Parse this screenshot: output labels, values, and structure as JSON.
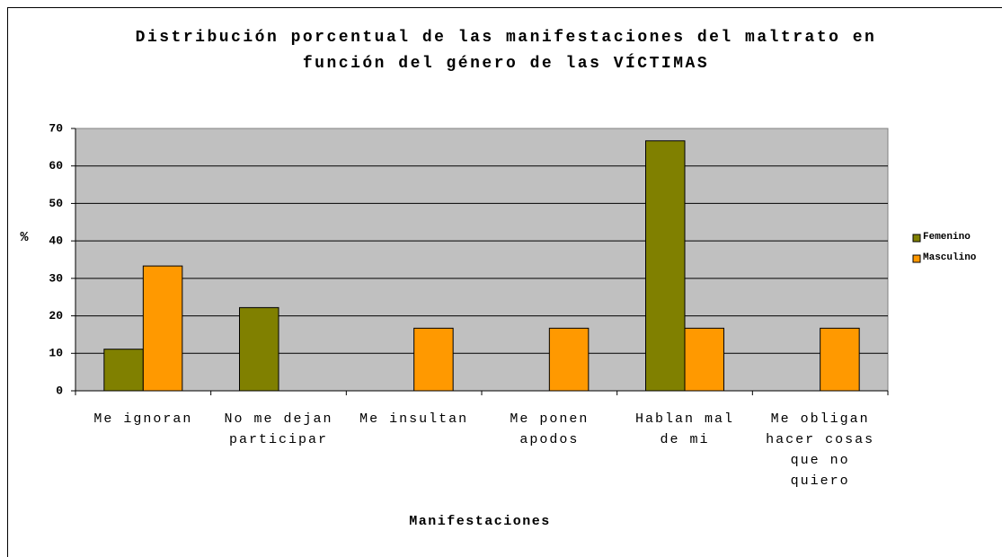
{
  "chart_data": {
    "type": "bar",
    "title": "Distribución porcentual de las manifestaciones del maltrato en función del género de las VÍCTIMAS",
    "categories": [
      "Me ignoran",
      "No me dejan participar",
      "Me insultan",
      "Me ponen apodos",
      "Hablan mal de mi",
      "Me obligan hacer cosas que no quiero"
    ],
    "series": [
      {
        "name": "Femenino",
        "color": "#808000",
        "values": [
          11.1,
          22.2,
          0,
          0,
          66.7,
          0
        ]
      },
      {
        "name": "Masculino",
        "color": "#ff9900",
        "values": [
          33.3,
          0,
          16.7,
          16.7,
          16.7,
          16.7
        ]
      }
    ],
    "x_label": "Manifestaciones",
    "y_label": "%",
    "ylim": [
      0,
      70
    ],
    "yticks": [
      0,
      10,
      20,
      30,
      40,
      50,
      60,
      70
    ],
    "grid": true,
    "legend": "right"
  }
}
